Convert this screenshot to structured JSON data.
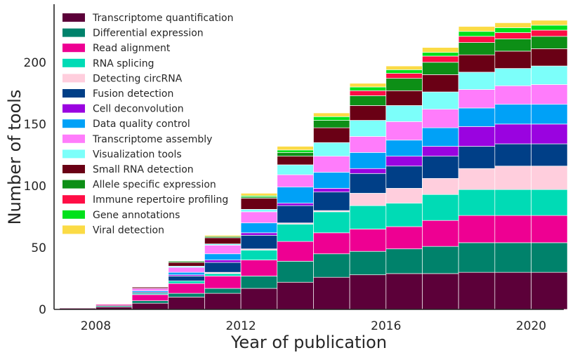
{
  "chart_data": {
    "type": "bar",
    "stacked": true,
    "xlabel": "Year of publication",
    "ylabel": "Number of tools",
    "x_ticks": [
      2008,
      2012,
      2016,
      2020
    ],
    "y_ticks": [
      0,
      50,
      100,
      150,
      200
    ],
    "ylim": [
      0,
      247
    ],
    "xlim": [
      2006.85,
      2020.9
    ],
    "legend_position": "top-left",
    "grid": false,
    "categories": [
      2007.5,
      2008.5,
      2009.5,
      2010.5,
      2011.5,
      2012.5,
      2013.5,
      2014.5,
      2015.5,
      2016.5,
      2017.5,
      2018.5,
      2019.5,
      2020.5
    ],
    "series": [
      {
        "name": "Transcriptome quantification",
        "color": "#5c0039",
        "values": [
          1,
          2,
          5,
          10,
          13,
          17,
          22,
          26,
          28,
          29,
          29,
          30,
          30,
          30
        ]
      },
      {
        "name": "Differential expression",
        "color": "#00826b",
        "values": [
          0,
          1,
          2,
          3,
          4,
          10,
          17,
          19,
          19,
          20,
          22,
          24,
          24,
          24
        ]
      },
      {
        "name": "Read alignment",
        "color": "#ee0092",
        "values": [
          0,
          1,
          5,
          8,
          10,
          13,
          16,
          17,
          18,
          18,
          21,
          22,
          22,
          22
        ]
      },
      {
        "name": "RNA splicing",
        "color": "#00dbb5",
        "values": [
          0,
          0,
          1,
          2,
          2,
          8,
          14,
          17,
          19,
          19,
          21,
          21,
          21,
          21
        ]
      },
      {
        "name": "Detecting circRNA",
        "color": "#ffcedd",
        "values": [
          0,
          0,
          0,
          0,
          1,
          1,
          1,
          1,
          10,
          12,
          13,
          17,
          19,
          19
        ]
      },
      {
        "name": "Fusion detection",
        "color": "#003f87",
        "values": [
          0,
          0,
          1,
          4,
          8,
          11,
          14,
          15,
          16,
          18,
          18,
          18,
          18,
          18
        ]
      },
      {
        "name": "Cell deconvolution",
        "color": "#9a03e0",
        "values": [
          0,
          0,
          0,
          1,
          2,
          2,
          2,
          3,
          4,
          8,
          8,
          16,
          16,
          16
        ]
      },
      {
        "name": "Data quality control",
        "color": "#00a1f7",
        "values": [
          0,
          0,
          1,
          2,
          5,
          8,
          13,
          13,
          13,
          13,
          15,
          15,
          16,
          16
        ]
      },
      {
        "name": "Transcriptome assembly",
        "color": "#ff7cfb",
        "values": [
          0,
          0,
          2,
          4,
          7,
          9,
          10,
          13,
          13,
          15,
          15,
          15,
          15,
          16
        ]
      },
      {
        "name": "Visualization tools",
        "color": "#7cfffa",
        "values": [
          0,
          0,
          0,
          1,
          1,
          2,
          8,
          11,
          13,
          13,
          14,
          14,
          14,
          15
        ]
      },
      {
        "name": "Small RNA detection",
        "color": "#6a0015",
        "values": [
          0,
          0,
          1,
          3,
          5,
          9,
          7,
          12,
          12,
          12,
          14,
          14,
          14,
          14
        ]
      },
      {
        "name": "Allele specific expression",
        "color": "#0d8f16",
        "values": [
          0,
          0,
          0,
          1,
          1,
          1,
          3,
          6,
          8,
          10,
          10,
          10,
          10,
          10
        ]
      },
      {
        "name": "Immune repertoire profiling",
        "color": "#ff0d45",
        "values": [
          0,
          0,
          0,
          0,
          0,
          0,
          0,
          0,
          4,
          4,
          5,
          5,
          5,
          5
        ]
      },
      {
        "name": "Gene annotations",
        "color": "#00e11b",
        "values": [
          0,
          0,
          0,
          0,
          0,
          1,
          2,
          3,
          3,
          3,
          3,
          4,
          4,
          4
        ]
      },
      {
        "name": "Viral detection",
        "color": "#fbdb45",
        "values": [
          0,
          0,
          0,
          0,
          1,
          2,
          3,
          3,
          3,
          3,
          4,
          4,
          4,
          4
        ]
      }
    ]
  }
}
